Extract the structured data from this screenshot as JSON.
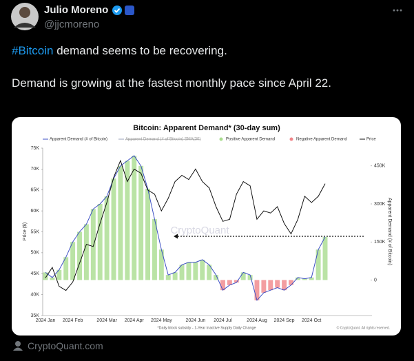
{
  "tweet": {
    "author": "Julio Moreno",
    "handle": "@jjcmoreno",
    "hashtag": "#Bitcoin",
    "line1": "demand seems to be recovering.",
    "line2": "Demand is growing at the fastest monthly pace since April 22.",
    "source": "CryptoQuant.com"
  },
  "chart_data": {
    "type": "line",
    "title": "Bitcoin: Apparent Demand* (30-day sum)",
    "ylabel": "Price ($)",
    "y2label": "Apparent Demand (# of Bitcoin)",
    "watermark": "CryptoQuant",
    "footnote": "*Daily block subsidy - 1-Year Inactive Supply Daily Change",
    "credit": "© CryptoQuant. All rights reserved.",
    "categories": [
      "2024 Jan",
      null,
      null,
      null,
      "2024 Feb",
      null,
      null,
      null,
      null,
      "2024 Mar",
      null,
      null,
      null,
      "2024 Apr",
      null,
      null,
      null,
      "2024 May",
      null,
      null,
      null,
      null,
      "2024 Jun",
      null,
      null,
      null,
      "2024 Jul",
      null,
      null,
      null,
      null,
      "2024 Aug",
      null,
      null,
      null,
      "2024 Sep",
      null,
      null,
      null,
      "2024 Oct",
      null,
      null
    ],
    "series": [
      {
        "name": "Apparent Demand (# of Bitcoin)",
        "color": "#3d4fc4",
        "axis": "y2",
        "values": [
          30000,
          10000,
          40000,
          90000,
          150000,
          190000,
          220000,
          280000,
          300000,
          330000,
          400000,
          450000,
          470000,
          490000,
          450000,
          360000,
          240000,
          120000,
          20000,
          30000,
          60000,
          70000,
          70000,
          80000,
          60000,
          20000,
          -40000,
          -20000,
          -10000,
          30000,
          20000,
          -80000,
          -50000,
          -40000,
          -30000,
          -40000,
          -20000,
          10000,
          5000,
          10000,
          120000,
          170000
        ]
      },
      {
        "name": "Price",
        "color": "#111111",
        "axis": "y",
        "values": [
          44000,
          46500,
          42000,
          41000,
          43000,
          47500,
          52000,
          51500,
          57000,
          62000,
          68000,
          72000,
          67000,
          70000,
          69000,
          65000,
          64000,
          60000,
          63000,
          67000,
          68500,
          67500,
          70000,
          67000,
          65500,
          61000,
          57500,
          58000,
          64000,
          67000,
          66000,
          58000,
          60000,
          59500,
          61000,
          57000,
          54500,
          58000,
          63500,
          62000,
          63500,
          66500
        ]
      }
    ],
    "legend_items": [
      {
        "name": "Apparent Demand (# of Bitcoin) SMA(30)",
        "color": "#9aa0b8"
      },
      {
        "name": "Positive Apparent Demand",
        "color": "#a9dc8e"
      },
      {
        "name": "Negative Apparent Demand",
        "color": "#f0868a"
      }
    ],
    "ylim": [
      35000,
      75000
    ],
    "yticks": [
      {
        "value": 35000,
        "label": "35K"
      },
      {
        "value": 40000,
        "label": "40K"
      },
      {
        "value": 45000,
        "label": "45K"
      },
      {
        "value": 50000,
        "label": "50K"
      },
      {
        "value": 55000,
        "label": "55K"
      },
      {
        "value": 60000,
        "label": "60K"
      },
      {
        "value": 65000,
        "label": "65K"
      },
      {
        "value": 70000,
        "label": "70K"
      },
      {
        "value": 75000,
        "label": "75K"
      }
    ],
    "y2lim": [
      -140000,
      520000
    ],
    "y2ticks": [
      0,
      {
        "value": 150000,
        "label": "150K"
      },
      {
        "value": 300000,
        "label": "300K"
      },
      {
        "value": 450000,
        "label": "450K"
      }
    ],
    "grid": false
  }
}
